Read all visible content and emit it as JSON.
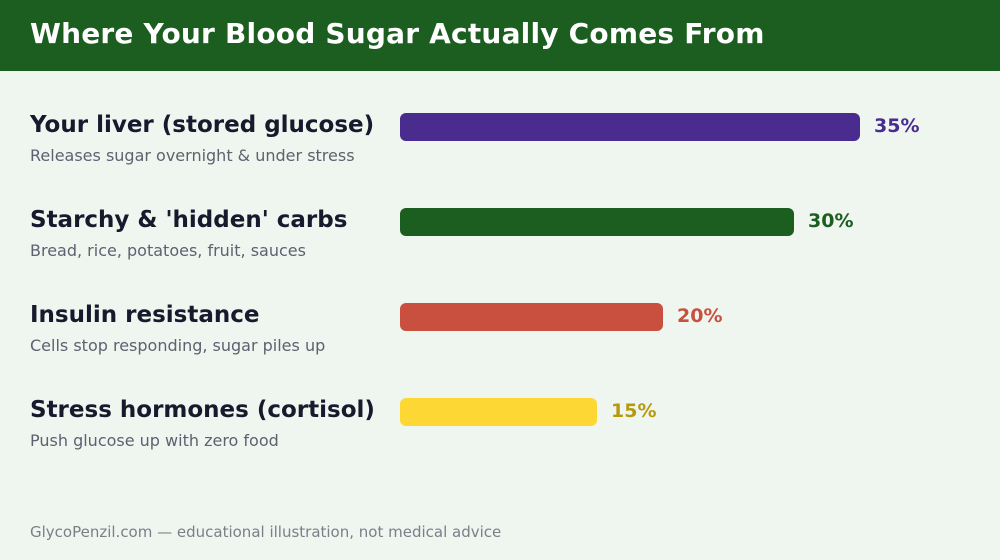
{
  "header": {
    "title": "Where Your Blood Sugar Actually Comes From"
  },
  "chart_data": {
    "type": "bar",
    "orientation": "horizontal",
    "title": "Where Your Blood Sugar Actually Comes From",
    "value_unit": "%",
    "xlim": [
      0,
      40
    ],
    "grid": false,
    "categories": [
      "Your liver (stored glucose)",
      "Starchy & 'hidden' carbs",
      "Insulin resistance",
      "Stress hormones (cortisol)"
    ],
    "subtitles": [
      "Releases sugar overnight & under stress",
      "Bread, rice, potatoes, fruit, sauces",
      "Cells stop responding, sugar piles up",
      "Push glucose up with zero food"
    ],
    "values": [
      35,
      30,
      20,
      15
    ],
    "value_labels": [
      "35%",
      "30%",
      "20%",
      "15%"
    ],
    "colors": [
      "#4a2c8f",
      "#1b5e20",
      "#c9503e",
      "#fdd835"
    ],
    "label_colors": [
      "#4a2c8f",
      "#1b5e20",
      "#c9503e",
      "#b59a10"
    ]
  },
  "footer": {
    "text": "GlycoPenzil.com — educational illustration, not medical advice"
  }
}
